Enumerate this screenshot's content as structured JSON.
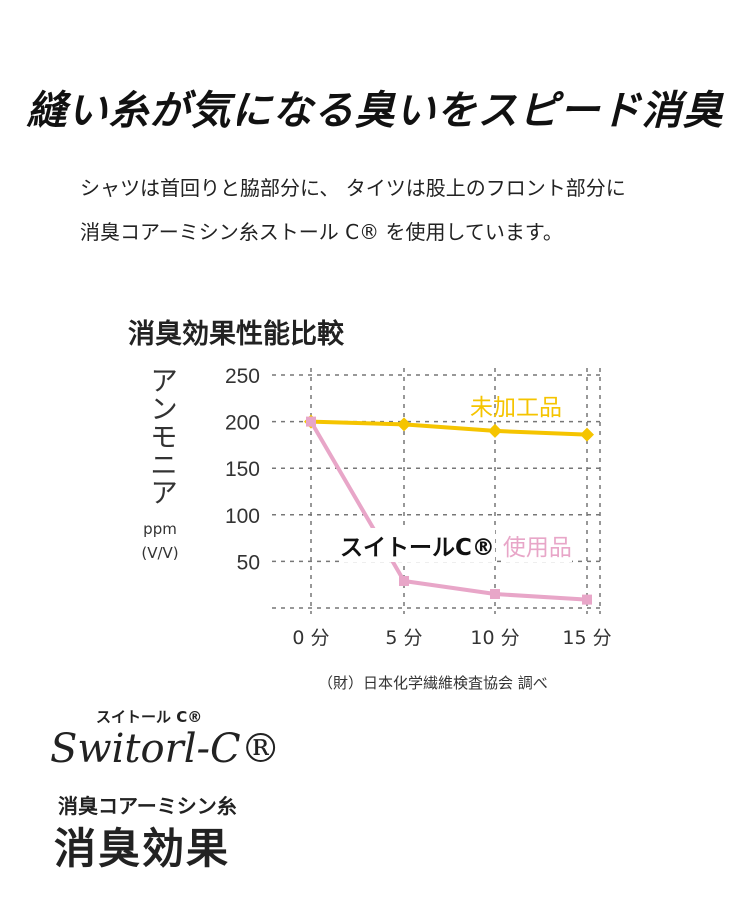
{
  "headline": "縫い糸が気になる臭いをスピード消臭",
  "intro": {
    "line1": "シャツは首回りと脇部分に、 タイツは股上のフロント部分に",
    "line2": "消臭コアーミシン糸ストール C® を使用しています。"
  },
  "chart_data": {
    "type": "line",
    "title": "消臭効果性能比較",
    "ylabel": "アンモニア",
    "ylabel_unit_1": "ppm",
    "ylabel_unit_2": "(V/V)",
    "x": [
      0,
      5,
      10,
      15
    ],
    "x_tick_labels": [
      "0 分",
      "5 分",
      "10 分",
      "15 分"
    ],
    "y_ticks": [
      250,
      200,
      150,
      100,
      50
    ],
    "ylim": [
      0,
      250
    ],
    "grid": true,
    "series": [
      {
        "name": "未加工品",
        "color": "#f5c400",
        "values": [
          200,
          197,
          190,
          186
        ]
      },
      {
        "name": "使用品",
        "name_prefix": "スイトールC®",
        "color": "#e8a6c8",
        "values": [
          200,
          29,
          15,
          9
        ]
      }
    ],
    "source": "（財）日本化学繊維検査協会 調べ"
  },
  "logo": {
    "kana": "スイトール C®",
    "script": "Switorl-C®",
    "sub": "消臭コアーミシン糸",
    "main": "消臭効果"
  }
}
